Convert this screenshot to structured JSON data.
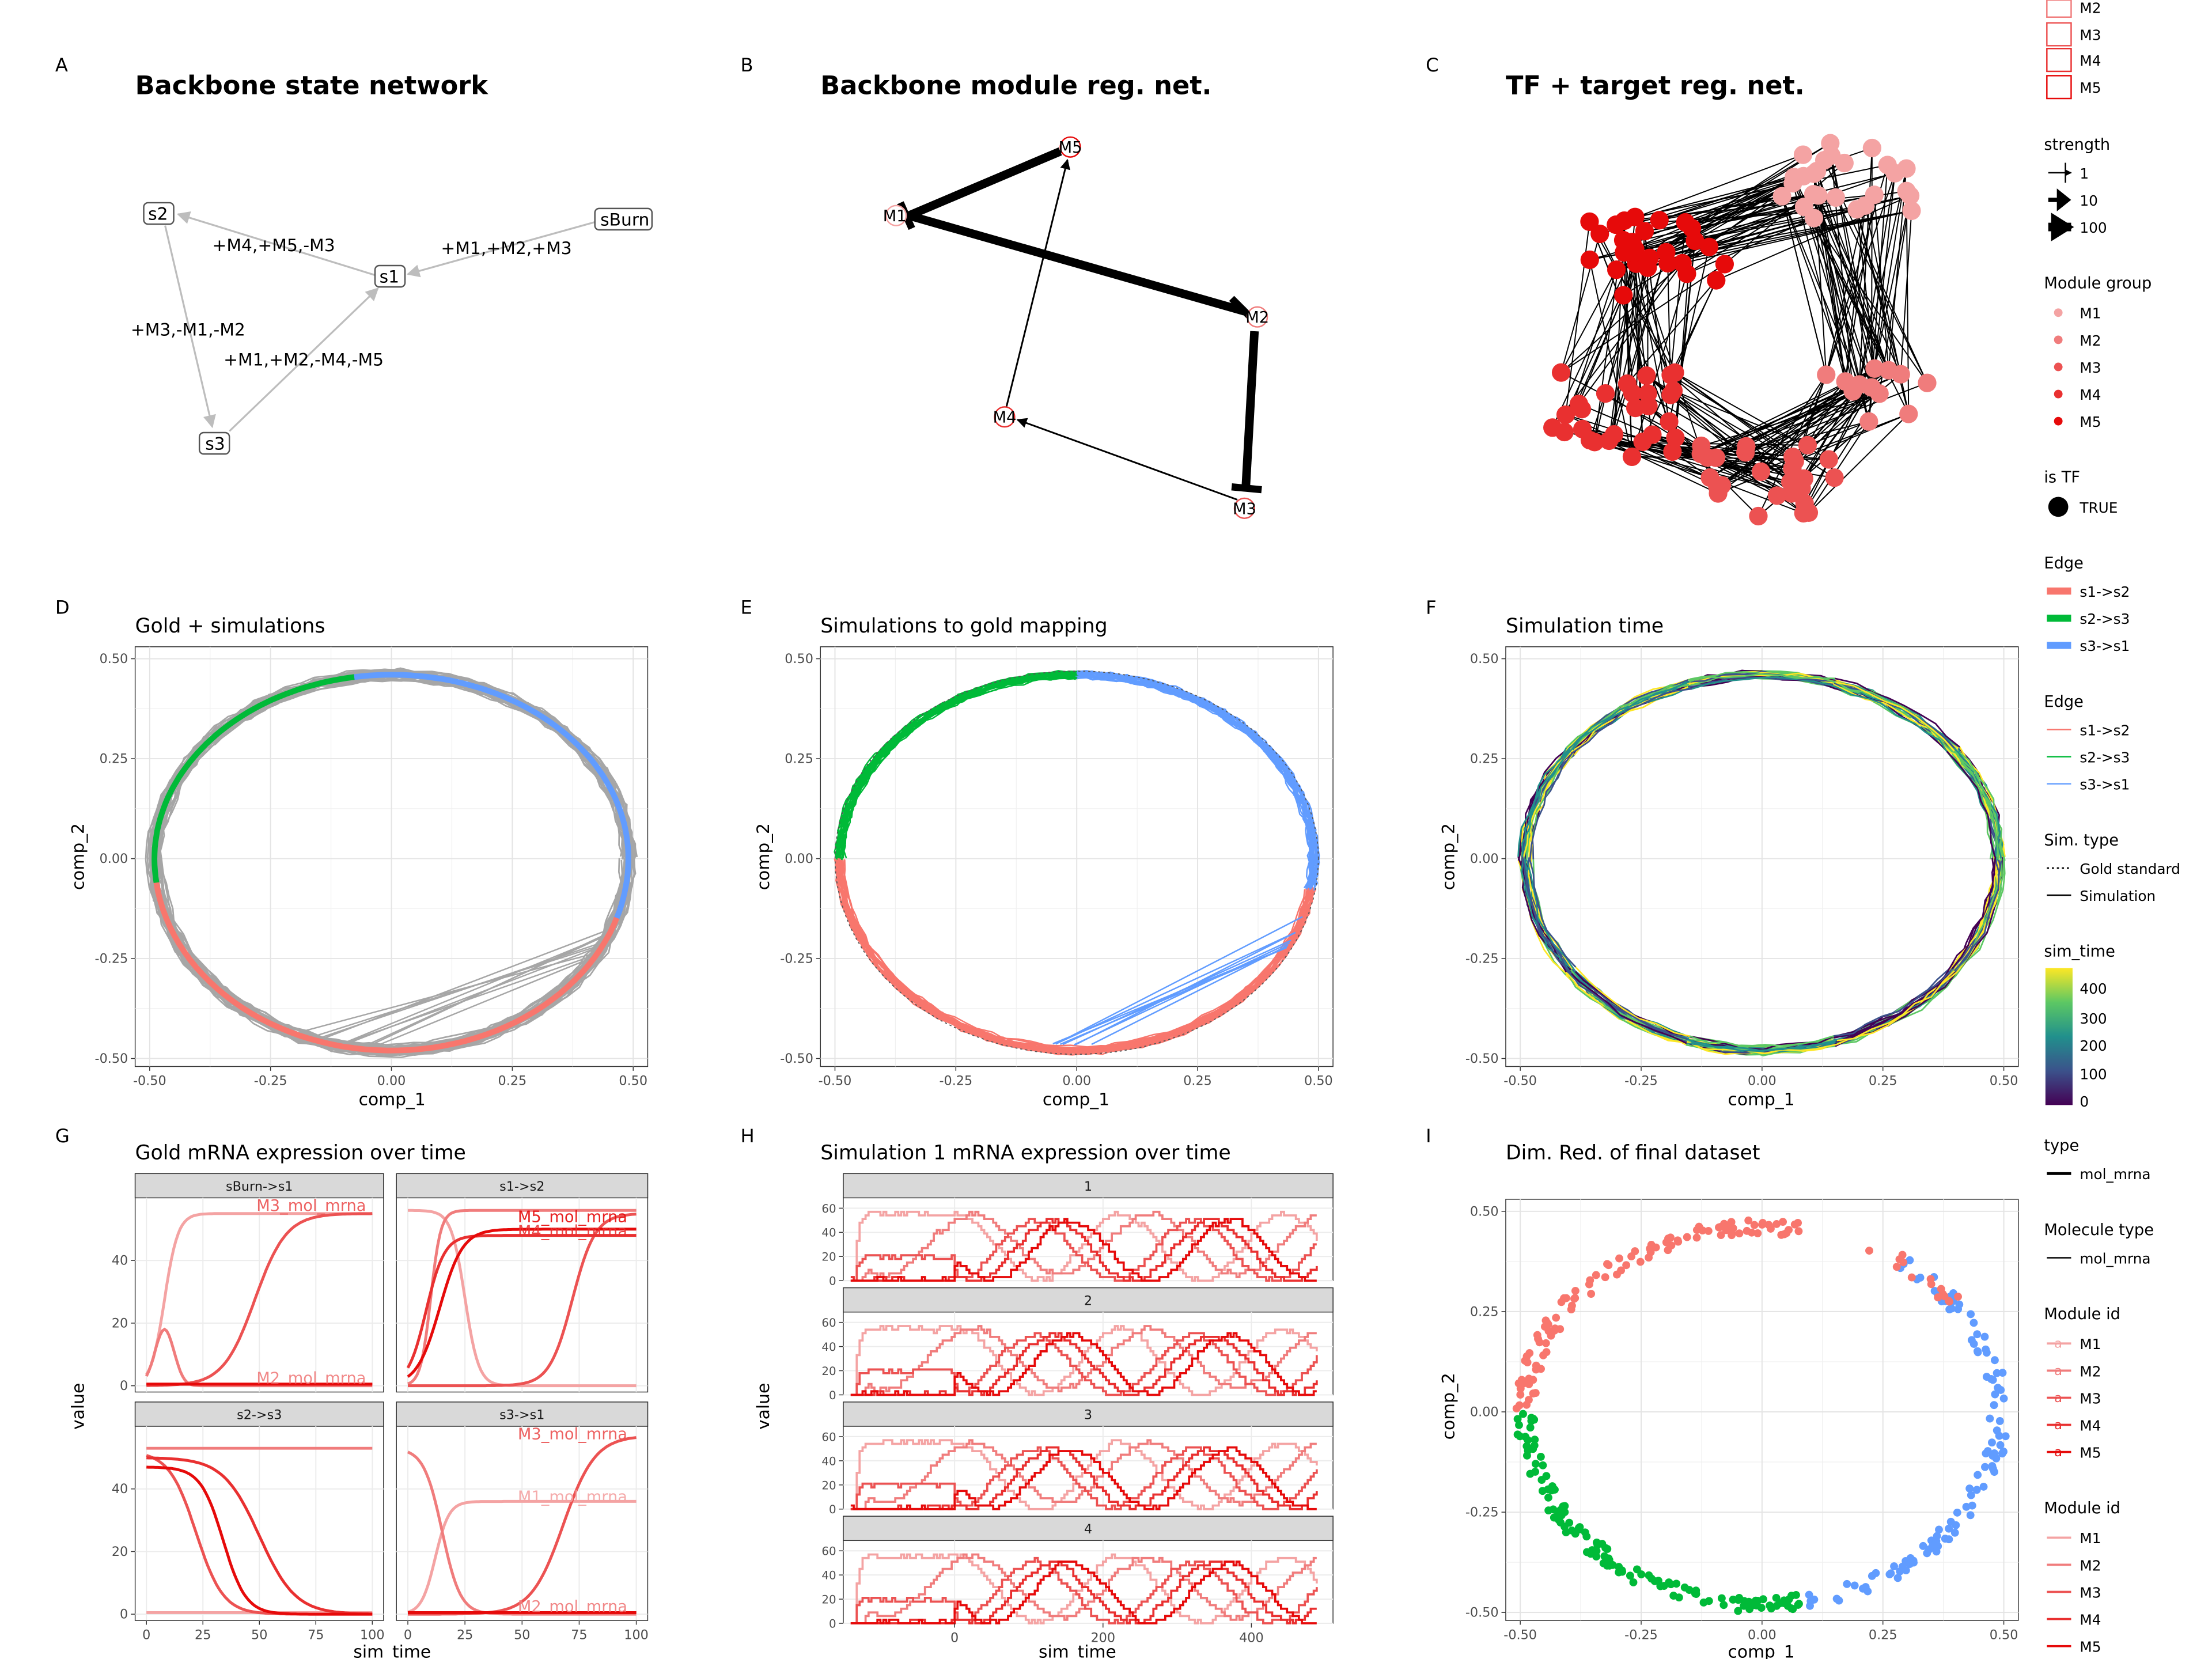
{
  "panels": {
    "A": {
      "tag": "A",
      "title": "Backbone state network"
    },
    "B": {
      "tag": "B",
      "title": "Backbone module reg. net."
    },
    "C": {
      "tag": "C",
      "title": "TF + target reg. net."
    },
    "D": {
      "tag": "D",
      "title": "Gold + simulations",
      "xlabel": "comp_1",
      "ylabel": "comp_2"
    },
    "E": {
      "tag": "E",
      "title": "Simulations to gold mapping",
      "xlabel": "comp_1",
      "ylabel": "comp_2"
    },
    "F": {
      "tag": "F",
      "title": "Simulation time",
      "xlabel": "comp_1",
      "ylabel": "comp_2"
    },
    "G": {
      "tag": "G",
      "title": "Gold mRNA expression over time",
      "xlabel": "sim_time",
      "ylabel": "value"
    },
    "H": {
      "tag": "H",
      "title": "Simulation 1 mRNA expression over time",
      "xlabel": "sim_time",
      "ylabel": "value"
    },
    "I": {
      "tag": "I",
      "title": "Dim. Red. of final dataset",
      "xlabel": "comp_1",
      "ylabel": "comp_2"
    }
  },
  "state_network": {
    "nodes": [
      "s2",
      "s1",
      "sBurn",
      "s3"
    ],
    "edge_labels": [
      "+M4,+M5,-M3",
      "+M1,+M2,+M3",
      "+M3,-M1,-M2",
      "+M1,+M2,-M4,-M5"
    ]
  },
  "module_network": {
    "nodes": [
      "M5",
      "M1",
      "M2",
      "M4",
      "M3"
    ]
  },
  "tf_network": {
    "module_groups": [
      "M1",
      "M2",
      "M3",
      "M4",
      "M5"
    ]
  },
  "legends": {
    "module_top_items": [
      "M2",
      "M3",
      "M4",
      "M5"
    ],
    "strength": {
      "title": "strength",
      "items": [
        "1",
        "10",
        "100"
      ]
    },
    "module_group": {
      "title": "Module group",
      "items": [
        "M1",
        "M2",
        "M3",
        "M4",
        "M5"
      ]
    },
    "is_tf": {
      "title": "is TF",
      "items": [
        "TRUE"
      ]
    },
    "edge_thick": {
      "title": "Edge",
      "items": [
        "s1->s2",
        "s2->s3",
        "s3->s1"
      ]
    },
    "edge_thin": {
      "title": "Edge",
      "items": [
        "s1->s2",
        "s2->s3",
        "s3->s1"
      ]
    },
    "sim_type": {
      "title": "Sim. type",
      "items": [
        "Gold standard",
        "Simulation"
      ]
    },
    "sim_time": {
      "title": "sim_time",
      "ticks": [
        "400",
        "300",
        "200",
        "100",
        "0"
      ]
    },
    "type": {
      "title": "type",
      "items": [
        "mol_mrna"
      ]
    },
    "molecule_type": {
      "title": "Molecule type",
      "items": [
        "mol_mrna"
      ]
    },
    "module_id_a": {
      "title": "Module id",
      "items": [
        "M1",
        "M2",
        "M3",
        "M4",
        "M5"
      ]
    },
    "module_id_b": {
      "title": "Module id",
      "items": [
        "M1",
        "M2",
        "M3",
        "M4",
        "M5"
      ]
    }
  },
  "colors": {
    "edge_s1_s2": "#F8766D",
    "edge_s2_s3": "#00BA38",
    "edge_s3_s1": "#619CFF",
    "M1": "#F4A3A3",
    "M2": "#F07C7C",
    "M3": "#EC5252",
    "M4": "#E93030",
    "M5": "#E60A0A",
    "gray": "#A6A6A6",
    "strip": "#D9D9D9"
  },
  "chart_data": [
    {
      "id": "D",
      "type": "line",
      "title": "Gold + simulations",
      "xlabel": "comp_1",
      "ylabel": "comp_2",
      "xlim": [
        -0.53,
        0.53
      ],
      "ylim": [
        -0.52,
        0.53
      ],
      "xticks": [
        "-0.50",
        "-0.25",
        "0.00",
        "0.25",
        "0.50"
      ],
      "yticks": [
        "0.50",
        "0.25",
        "0.00",
        "-0.25",
        "-0.50"
      ],
      "series": [
        {
          "name": "s1->s2"
        },
        {
          "name": "s2->s3"
        },
        {
          "name": "s3->s1"
        }
      ]
    },
    {
      "id": "E",
      "type": "line",
      "title": "Simulations to gold mapping",
      "xlabel": "comp_1",
      "ylabel": "comp_2",
      "xlim": [
        -0.53,
        0.53
      ],
      "ylim": [
        -0.52,
        0.53
      ],
      "xticks": [
        "-0.50",
        "-0.25",
        "0.00",
        "0.25",
        "0.50"
      ],
      "yticks": [
        "0.50",
        "0.25",
        "0.00",
        "-0.25",
        "-0.50"
      ]
    },
    {
      "id": "F",
      "type": "line",
      "title": "Simulation time",
      "xlabel": "comp_1",
      "ylabel": "comp_2",
      "xlim": [
        -0.53,
        0.53
      ],
      "ylim": [
        -0.52,
        0.53
      ],
      "xticks": [
        "-0.50",
        "-0.25",
        "0.00",
        "0.25",
        "0.50"
      ],
      "yticks": [
        "0.50",
        "0.25",
        "0.00",
        "-0.25",
        "-0.50"
      ],
      "color_scale": "sim_time 0-450"
    },
    {
      "id": "G",
      "type": "line",
      "title": "Gold mRNA expression over time",
      "xlabel": "sim_time",
      "ylabel": "value",
      "xlim": [
        -5,
        105
      ],
      "ylim": [
        -2,
        60
      ],
      "xticks": [
        "0",
        "25",
        "50",
        "75",
        "100"
      ],
      "yticks": [
        "40",
        "20",
        "0"
      ],
      "facets": [
        {
          "strip": "sBurn->s1",
          "labels": [
            "M3_mol_mrna",
            "M2_mol_mrna"
          ]
        },
        {
          "strip": "s1->s2",
          "labels": [
            "M5_mol_mrna",
            "M4_mol_mrna"
          ]
        },
        {
          "strip": "s2->s3",
          "labels": []
        },
        {
          "strip": "s3->s1",
          "labels": [
            "M3_mol_mrna",
            "M1_mol_mrna",
            "M2_mol_mrna"
          ]
        }
      ]
    },
    {
      "id": "H",
      "type": "line",
      "title": "Simulation 1 mRNA expression over time",
      "xlabel": "sim_time",
      "ylabel": "value",
      "xlim": [
        -150,
        510
      ],
      "ylim": [
        0,
        65
      ],
      "xticks": [
        "0",
        "200",
        "400"
      ],
      "yticks": [
        "60",
        "40",
        "20",
        "0"
      ],
      "facets": [
        "1",
        "2",
        "3",
        "4"
      ]
    },
    {
      "id": "I",
      "type": "scatter",
      "title": "Dim. Red. of final dataset",
      "xlabel": "comp_1",
      "ylabel": "comp_2",
      "xlim": [
        -0.53,
        0.53
      ],
      "ylim": [
        -0.52,
        0.53
      ],
      "xticks": [
        "-0.50",
        "-0.25",
        "0.00",
        "0.25",
        "0.50"
      ],
      "yticks": [
        "0.50",
        "0.25",
        "0.00",
        "-0.25",
        "-0.50"
      ]
    }
  ]
}
